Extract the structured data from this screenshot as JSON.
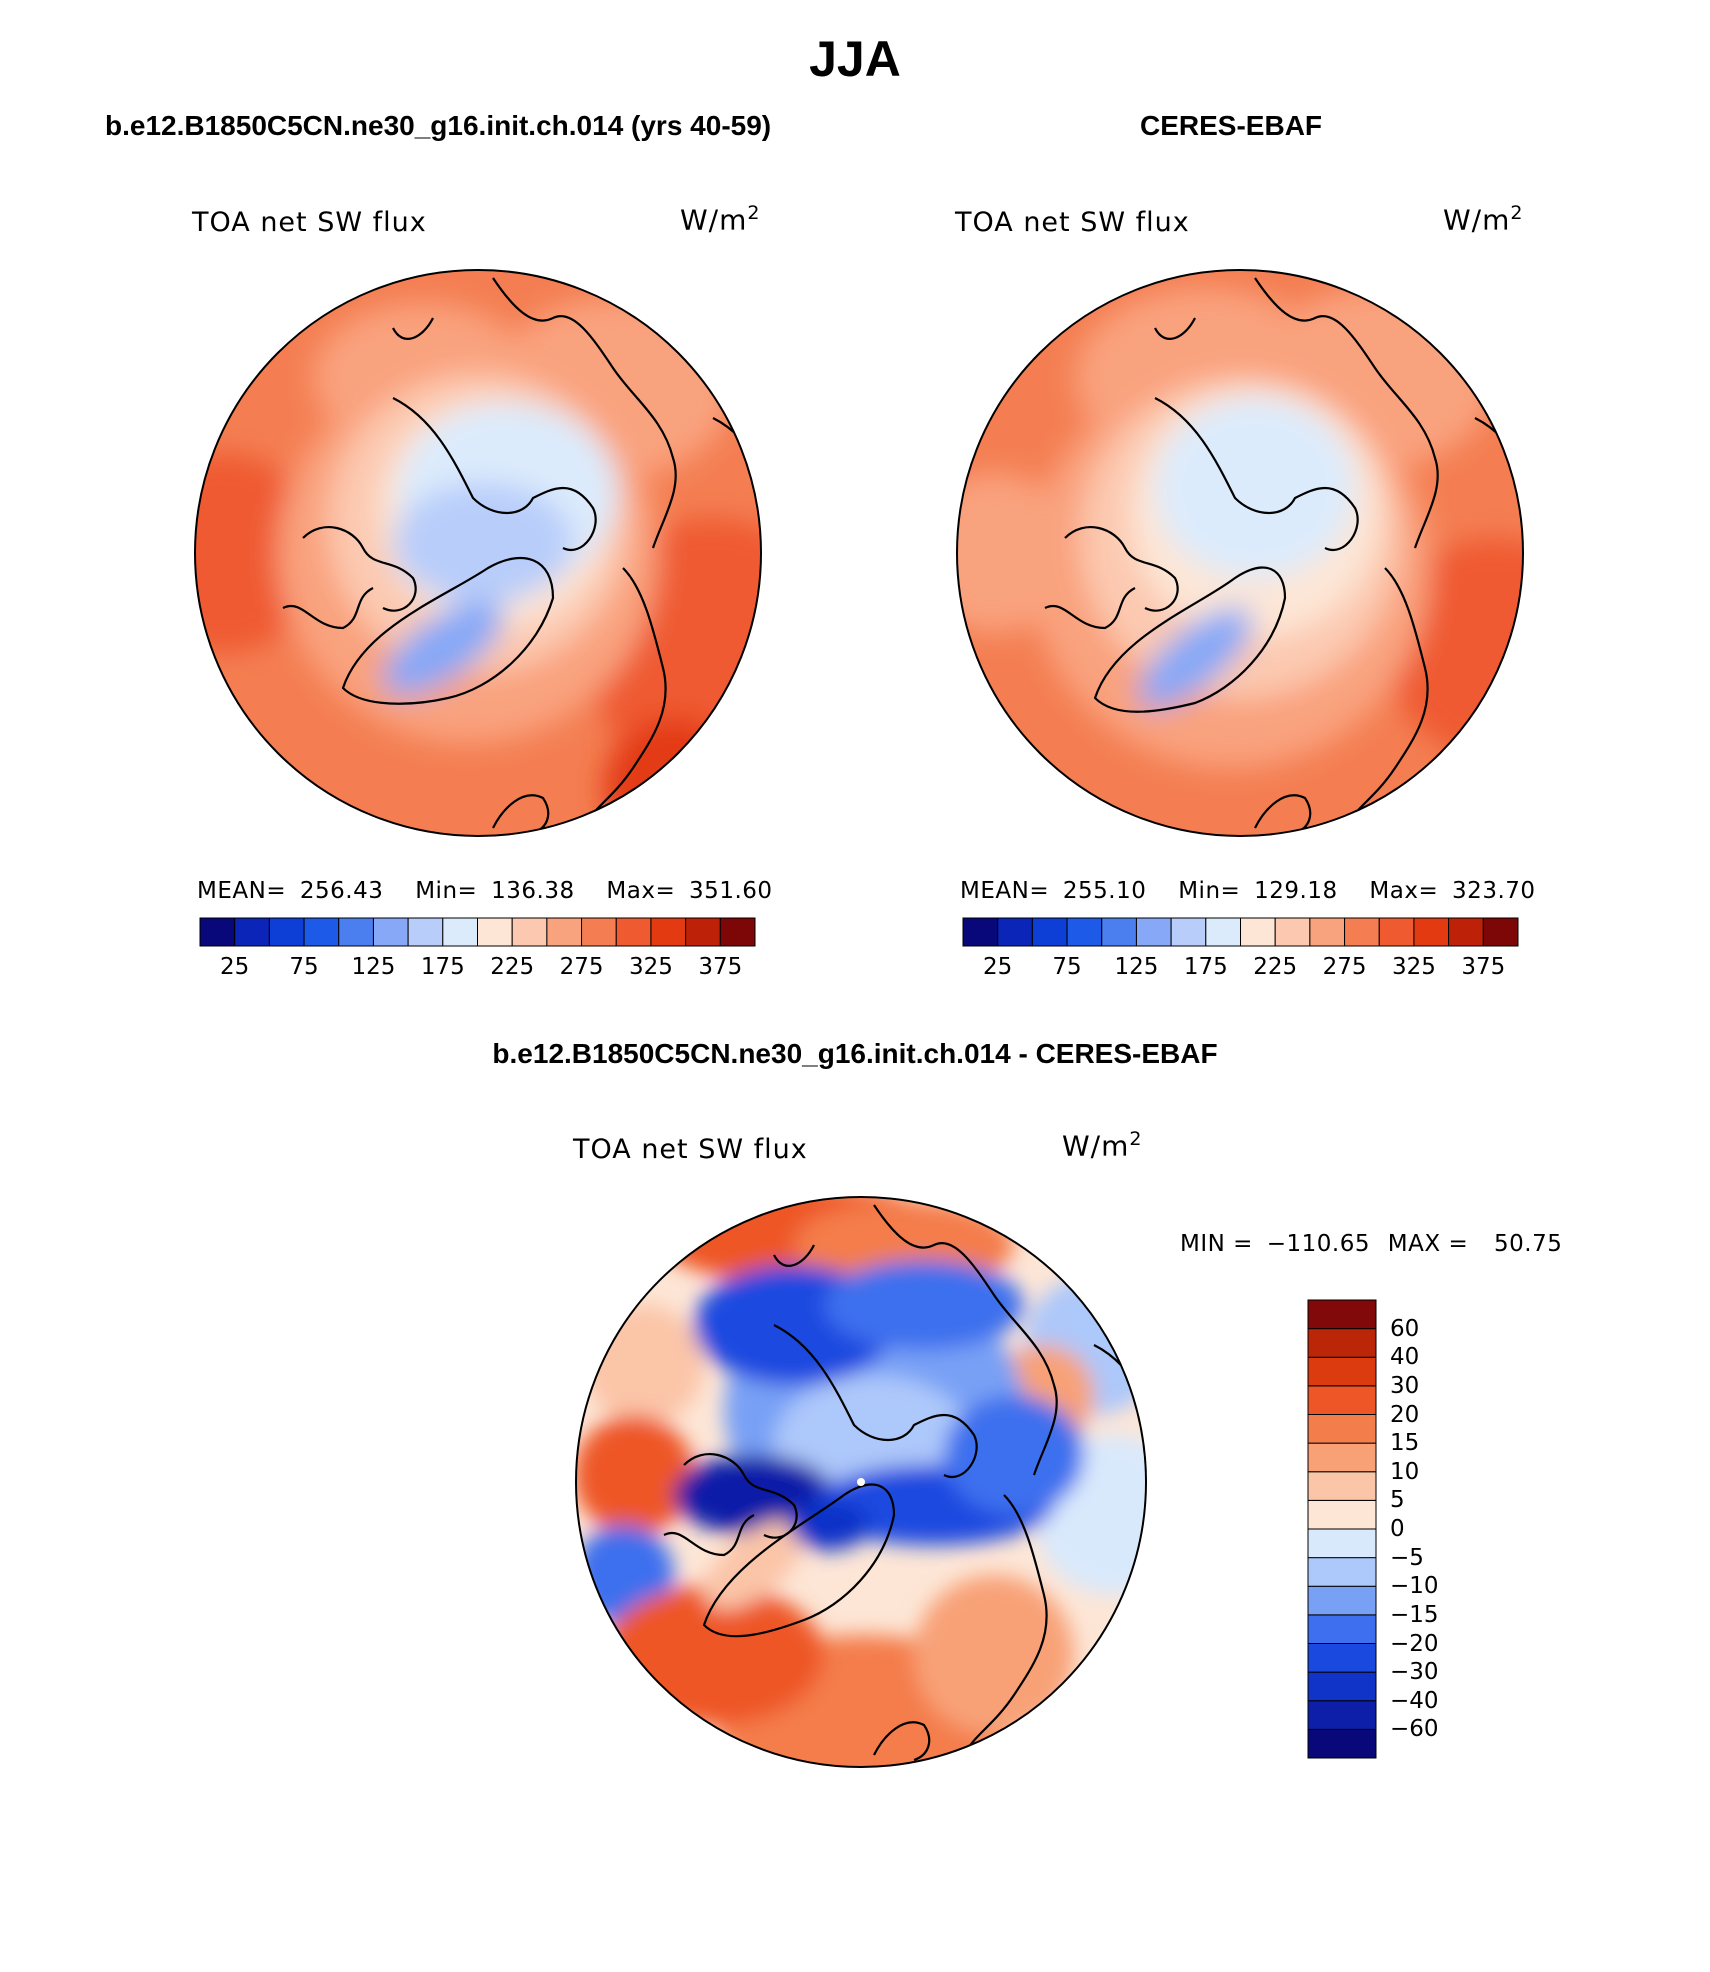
{
  "figure": {
    "title": "JJA"
  },
  "panels": [
    {
      "title": "b.e12.B1850C5CN.ne30_g16.init.ch.014 (yrs 40-59)",
      "variable": "TOA net SW flux",
      "units_base": "W/m",
      "units_exp": "2",
      "stats": {
        "mean_label": "MEAN=",
        "mean": "256.43",
        "min_label": "Min=",
        "min": "136.38",
        "max_label": "Max=",
        "max": "351.60"
      }
    },
    {
      "title": "CERES-EBAF",
      "variable": "TOA net SW flux",
      "units_base": "W/m",
      "units_exp": "2",
      "stats": {
        "mean_label": "MEAN=",
        "mean": "255.10",
        "min_label": "Min=",
        "min": "129.18",
        "max_label": "Max=",
        "max": "323.70"
      }
    },
    {
      "title": "b.e12.B1850C5CN.ne30_g16.init.ch.014 - CERES-EBAF",
      "variable": "TOA net SW flux",
      "units_base": "W/m",
      "units_exp": "2",
      "stats": {
        "min_label": "MIN =",
        "min": "−110.65",
        "max_label": "MAX =",
        "max": "50.75"
      }
    }
  ],
  "colorbars": {
    "absolute": {
      "colors": [
        "#08087a",
        "#0a25b8",
        "#0d3ed6",
        "#1d5ae8",
        "#4b7ff0",
        "#86a8f7",
        "#b8cdfa",
        "#dcebfc",
        "#fde6d6",
        "#fcc9b0",
        "#f9a27e",
        "#f47e52",
        "#ef5a30",
        "#e33a12",
        "#bd2208",
        "#7d0707"
      ],
      "tick_labels": [
        "25",
        "75",
        "125",
        "175",
        "225",
        "275",
        "325",
        "375"
      ]
    },
    "difference": {
      "colors": [
        "#08087a",
        "#0d1fa8",
        "#1033c8",
        "#1a49e0",
        "#3d6fee",
        "#78a0f5",
        "#adc8fa",
        "#d9e9fc",
        "#fde6d6",
        "#fbc5a8",
        "#f8a177",
        "#f47d4c",
        "#ee5627",
        "#dc3a0f",
        "#bb2608",
        "#820909"
      ],
      "tick_labels": [
        "60",
        "40",
        "30",
        "20",
        "15",
        "10",
        "5",
        "0",
        "−5",
        "−10",
        "−15",
        "−20",
        "−30",
        "−40",
        "−60"
      ]
    }
  },
  "chart_data": [
    {
      "type": "heatmap",
      "title": "b.e12.B1850C5CN.ne30_g16.init.ch.014 (yrs 40-59)",
      "variable": "TOA net SW flux",
      "units": "W/m2",
      "projection": "north polar stereographic",
      "levels": [
        25,
        50,
        75,
        100,
        125,
        150,
        175,
        200,
        225,
        250,
        275,
        300,
        325,
        350,
        375
      ],
      "mean": 256.43,
      "min": 136.38,
      "max": 351.6
    },
    {
      "type": "heatmap",
      "title": "CERES-EBAF",
      "variable": "TOA net SW flux",
      "units": "W/m2",
      "projection": "north polar stereographic",
      "levels": [
        25,
        50,
        75,
        100,
        125,
        150,
        175,
        200,
        225,
        250,
        275,
        300,
        325,
        350,
        375
      ],
      "mean": 255.1,
      "min": 129.18,
      "max": 323.7
    },
    {
      "type": "heatmap",
      "title": "b.e12.B1850C5CN.ne30_g16.init.ch.014 - CERES-EBAF",
      "variable": "TOA net SW flux",
      "units": "W/m2",
      "projection": "north polar stereographic",
      "levels": [
        -60,
        -40,
        -30,
        -20,
        -15,
        -10,
        -5,
        0,
        5,
        10,
        15,
        20,
        30,
        40,
        60
      ],
      "min": -110.65,
      "max": 50.75
    }
  ]
}
